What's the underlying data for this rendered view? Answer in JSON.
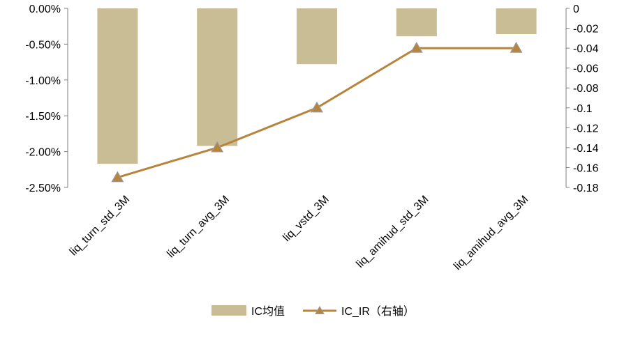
{
  "chart_data": {
    "type": "bar",
    "categories": [
      "liq_turn_std_3M",
      "liq_turn_avg_3M",
      "liq_vstd_3M",
      "liq_amihud_std_3M",
      "liq_amihud_avg_3M"
    ],
    "series": [
      {
        "name": "IC均值",
        "type": "bar",
        "axis": "left",
        "values": [
          -2.17,
          -1.92,
          -0.78,
          -0.39,
          -0.36
        ]
      },
      {
        "name": "IC_IR（右轴）",
        "type": "line",
        "axis": "right",
        "values": [
          -0.17,
          -0.14,
          -0.1,
          -0.04,
          -0.04
        ]
      }
    ],
    "y_left": {
      "min": -2.5,
      "max": 0,
      "ticks": [
        0,
        -0.5,
        -1.0,
        -1.5,
        -2.0,
        -2.5
      ],
      "tick_labels": [
        "0.00%",
        "-0.50%",
        "-1.00%",
        "-1.50%",
        "-2.00%",
        "-2.50%"
      ]
    },
    "y_right": {
      "min": -0.18,
      "max": 0,
      "ticks": [
        0,
        -0.02,
        -0.04,
        -0.06,
        -0.08,
        -0.1,
        -0.12,
        -0.14,
        -0.16,
        -0.18
      ],
      "tick_labels": [
        "0",
        "-0.02",
        "-0.04",
        "-0.06",
        "-0.08",
        "-0.1",
        "-0.12",
        "-0.14",
        "-0.16",
        "-0.18"
      ]
    },
    "legend": {
      "position": "bottom"
    },
    "grid": false,
    "colors": {
      "bar": "#c8bd94",
      "line": "#b8843c",
      "marker": "#b8843c",
      "marker_stroke": "#9c9c9c",
      "axis": "#7f7f7f"
    }
  }
}
